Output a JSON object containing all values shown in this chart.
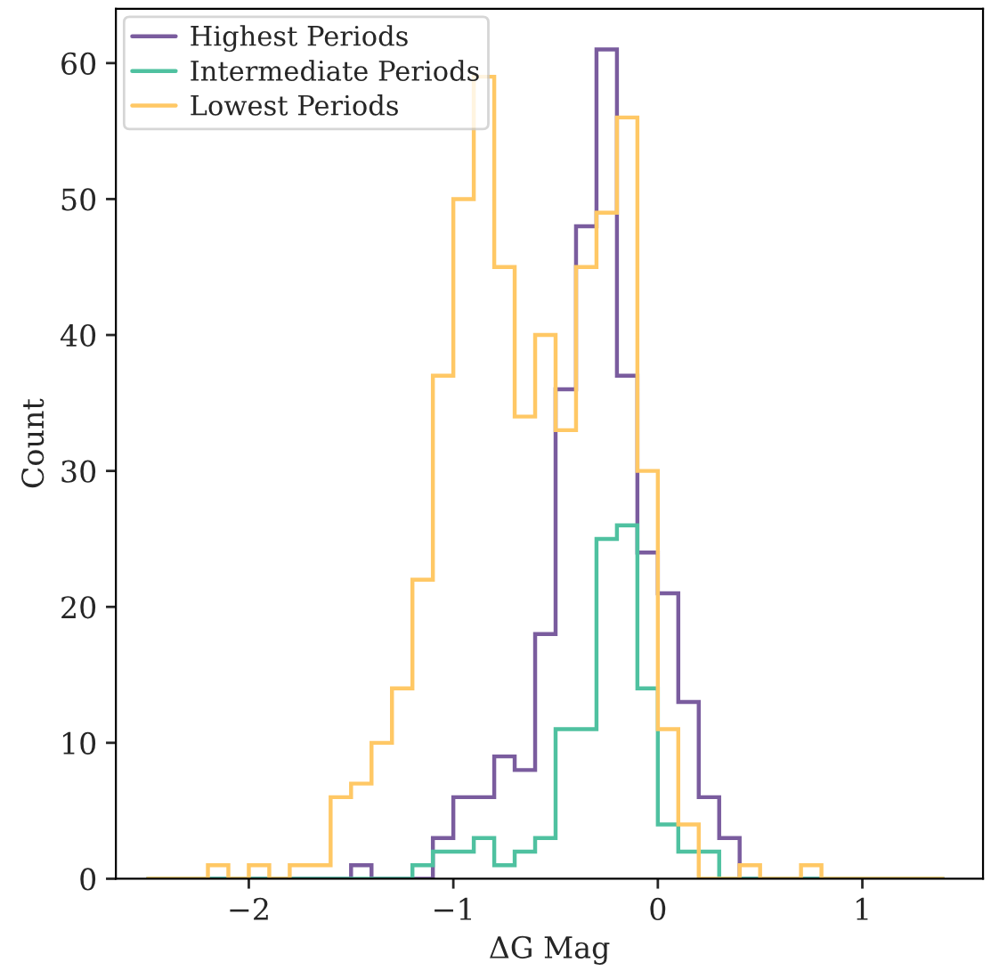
{
  "chart_data": {
    "type": "histogram",
    "xlabel": "ΔG Mag",
    "ylabel": "Count",
    "bins": [
      -2.5,
      -2.4,
      -2.3,
      -2.2,
      -2.1,
      -2.0,
      -1.9,
      -1.8,
      -1.7,
      -1.6,
      -1.5,
      -1.4,
      -1.3,
      -1.2,
      -1.1,
      -1.0,
      -0.9,
      -0.8,
      -0.7,
      -0.6,
      -0.5,
      -0.4,
      -0.3,
      -0.2,
      -0.1,
      0.0,
      0.1,
      0.2,
      0.3,
      0.4,
      0.5,
      0.6,
      0.7,
      0.8,
      0.9,
      1.0,
      1.1,
      1.2,
      1.3,
      1.4
    ],
    "series": [
      {
        "name": "Highest Periods",
        "color": "#7a5c9e",
        "values": [
          0,
          0,
          0,
          0,
          0,
          0,
          0,
          0,
          0,
          0,
          1,
          0,
          0,
          0,
          3,
          6,
          6,
          9,
          8,
          18,
          36,
          48,
          61,
          37,
          24,
          21,
          13,
          6,
          3,
          0,
          0,
          0,
          0,
          0,
          0,
          0,
          0,
          0,
          0
        ]
      },
      {
        "name": "Intermediate Periods",
        "color": "#4fc1a0",
        "values": [
          0,
          0,
          0,
          0,
          0,
          0,
          0,
          0,
          0,
          0,
          0,
          0,
          0,
          1,
          2,
          2,
          3,
          1,
          2,
          3,
          11,
          11,
          25,
          26,
          14,
          4,
          2,
          2,
          0,
          0,
          0,
          0,
          0,
          0,
          0,
          0,
          0,
          0,
          0
        ]
      },
      {
        "name": "Lowest Periods",
        "color": "#ffc865",
        "values": [
          0,
          0,
          0,
          1,
          0,
          1,
          0,
          1,
          1,
          6,
          7,
          10,
          14,
          22,
          37,
          50,
          59,
          45,
          34,
          40,
          33,
          45,
          49,
          56,
          30,
          11,
          4,
          0,
          0,
          1,
          0,
          0,
          1,
          0,
          0,
          0,
          0,
          0,
          0
        ]
      }
    ],
    "xlim": [
      -2.65,
      1.59
    ],
    "ylim": [
      0,
      64
    ],
    "xticks": [
      -2,
      -1,
      0,
      1
    ],
    "yticks": [
      0,
      10,
      20,
      30,
      40,
      50,
      60
    ],
    "legend": "top left",
    "grid": false
  }
}
